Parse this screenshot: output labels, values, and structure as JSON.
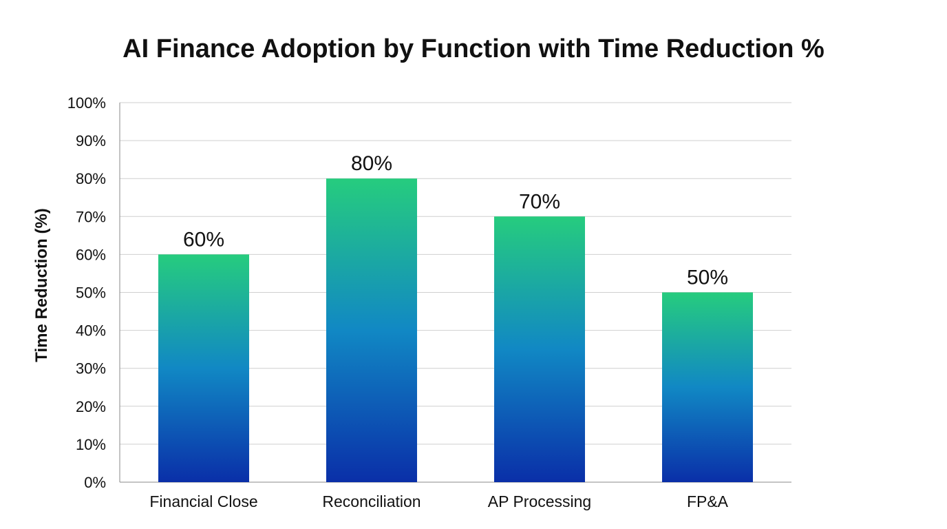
{
  "chart_data": {
    "type": "bar",
    "title": "AI Finance Adoption by Function with Time Reduction %",
    "xlabel": "",
    "ylabel": "Time Reduction (%)",
    "categories": [
      "Financial Close",
      "Reconciliation",
      "AP Processing",
      "FP&A"
    ],
    "values": [
      60,
      80,
      70,
      50
    ],
    "value_labels": [
      "60%",
      "80%",
      "70%",
      "50%"
    ],
    "ylim": [
      0,
      100
    ],
    "yticks": [
      0,
      10,
      20,
      30,
      40,
      50,
      60,
      70,
      80,
      90,
      100
    ],
    "ytick_labels": [
      "0%",
      "10%",
      "20%",
      "30%",
      "40%",
      "50%",
      "60%",
      "70%",
      "80%",
      "90%",
      "100%"
    ],
    "grid": "horizontal",
    "legend": "none",
    "colors": {
      "bar_top": "#26cc7e",
      "bar_mid": "#1188c4",
      "bar_bottom": "#0a2fa8",
      "grid": "#cfcfcf",
      "axis": "#8a8a8a"
    }
  }
}
